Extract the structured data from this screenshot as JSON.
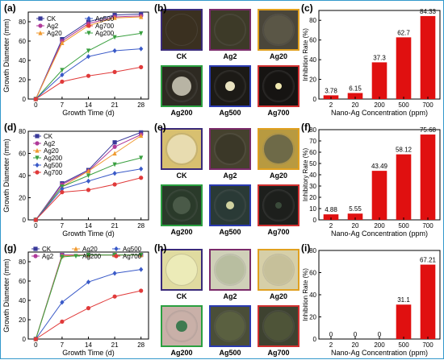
{
  "panels": {
    "a": {
      "tag": "(a)"
    },
    "b": {
      "tag": "(b)"
    },
    "c": {
      "tag": "(c)"
    },
    "d": {
      "tag": "(d)"
    },
    "e": {
      "tag": "(e)"
    },
    "f": {
      "tag": "(f)"
    },
    "g": {
      "tag": "(g)"
    },
    "h": {
      "tag": "(h)"
    },
    "i": {
      "tag": "(i)"
    }
  },
  "dish_sets": [
    {
      "labels": [
        "CK",
        "Ag2",
        "Ag20",
        "Ag200",
        "Ag500",
        "Ag700"
      ],
      "frame_colors": [
        "#3a2a7a",
        "#7a2a6a",
        "#e0a020",
        "#2aa040",
        "#2a3ab0",
        "#d03030"
      ],
      "plate_colors": [
        "#3a3020",
        "#3d3a28",
        "#4a463a",
        "#2e2a22",
        "#1c1a16",
        "#161412"
      ],
      "colony_colors": [
        "#3a3020",
        "#3d3a28",
        "#5a5646",
        "#b8b4a4",
        "#e8e2c0",
        "#f0e8b0"
      ],
      "colony_size": [
        0.95,
        0.9,
        0.88,
        0.6,
        0.3,
        0.2
      ]
    },
    {
      "labels": [
        "CK",
        "Ag2",
        "Ag20",
        "Ag200",
        "Ag500",
        "Ag700"
      ],
      "frame_colors": [
        "#3a2a7a",
        "#7a2a6a",
        "#e0a020",
        "#2aa040",
        "#2a3ab0",
        "#d03030"
      ],
      "plate_colors": [
        "#d8c070",
        "#45412e",
        "#b89a40",
        "#2a3a2a",
        "#2a3a36",
        "#1d1f1c"
      ],
      "colony_colors": [
        "#e8dcb0",
        "#3b3828",
        "#6e6a48",
        "#4a5a48",
        "#d0d2a0",
        "#3a4a3a"
      ],
      "colony_size": [
        0.92,
        0.9,
        0.88,
        0.55,
        0.25,
        0.2
      ]
    },
    {
      "labels": [
        "CK",
        "Ag2",
        "Ag20",
        "Ag200",
        "Ag500",
        "Ag700"
      ],
      "frame_colors": [
        "#3a2a7a",
        "#7a2a6a",
        "#e0a020",
        "#2aa040",
        "#2a3ab0",
        "#d03030"
      ],
      "plate_colors": [
        "#e0dba0",
        "#cfd0b8",
        "#d6cfa8",
        "#c9b0a8",
        "#4a4e38",
        "#3e4230"
      ],
      "colony_colors": [
        "#ecebb8",
        "#b8bea0",
        "#c6c09a",
        "#3e7a50",
        "#5a6040",
        "#4e5438"
      ],
      "colony_size": [
        0.95,
        0.92,
        0.92,
        0.35,
        0.9,
        0.9
      ]
    }
  ],
  "chart_data": [
    {
      "panel": "a",
      "type": "line",
      "xlabel": "Growth Time (d)",
      "ylabel": "Growth Diameter (mm)",
      "x": [
        0,
        7,
        14,
        21,
        28
      ],
      "xlim": [
        -2,
        30
      ],
      "ylim": [
        0,
        90
      ],
      "xticks": [
        "0",
        "7",
        "14",
        "21",
        "28"
      ],
      "yticks": [
        "0",
        "20",
        "40",
        "60",
        "80"
      ],
      "legend": {
        "placement": "top-inside",
        "columns": 2
      },
      "series": [
        {
          "name": "CK",
          "color": "#3a3a9a",
          "marker": "square",
          "values": [
            0,
            62,
            80,
            87,
            88
          ]
        },
        {
          "name": "Ag2",
          "color": "#b03a9a",
          "marker": "circle",
          "values": [
            0,
            60,
            78,
            85,
            86
          ]
        },
        {
          "name": "Ag20",
          "color": "#f09a30",
          "marker": "triangle",
          "values": [
            0,
            58,
            76,
            84,
            85
          ]
        },
        {
          "name": "Ag200",
          "color": "#3aa040",
          "marker": "triangle-down",
          "values": [
            0,
            30,
            50,
            64,
            68
          ]
        },
        {
          "name": "Ag500",
          "color": "#3a5ac8",
          "marker": "diamond",
          "values": [
            0,
            25,
            44,
            50,
            52
          ]
        },
        {
          "name": "Ag700",
          "color": "#e03a3a",
          "marker": "circle",
          "values": [
            0,
            18,
            24,
            28,
            33
          ]
        }
      ]
    },
    {
      "panel": "c",
      "type": "bar",
      "xlabel": "Nano-Ag Concentration (ppm)",
      "ylabel": "Inhibition Rate (%)",
      "categories": [
        "2",
        "20",
        "200",
        "500",
        "700"
      ],
      "values": [
        3.78,
        6.15,
        37.3,
        62.7,
        84.33
      ],
      "data_labels": [
        "3.78",
        "6.15",
        "37.3",
        "62.7",
        "84.33"
      ],
      "ylim": [
        0,
        90
      ],
      "yticks": [
        "0",
        "20",
        "40",
        "60",
        "80"
      ],
      "bar_color": "#e01010"
    },
    {
      "panel": "d",
      "type": "line",
      "xlabel": "Growth Time (d)",
      "ylabel": "Growth Diameter (mm)",
      "x": [
        0,
        7,
        14,
        21,
        28
      ],
      "xlim": [
        -2,
        30
      ],
      "ylim": [
        0,
        80
      ],
      "xticks": [
        "0",
        "7",
        "14",
        "21",
        "28"
      ],
      "yticks": [
        "0",
        "20",
        "40",
        "60",
        "80"
      ],
      "legend": {
        "placement": "top-left",
        "columns": 1
      },
      "series": [
        {
          "name": "CK",
          "color": "#3a3a9a",
          "marker": "square",
          "values": [
            0,
            33,
            45,
            70,
            79
          ]
        },
        {
          "name": "Ag2",
          "color": "#b03a9a",
          "marker": "circle",
          "values": [
            0,
            32,
            44,
            66,
            77
          ]
        },
        {
          "name": "Ag20",
          "color": "#f09a30",
          "marker": "triangle",
          "values": [
            0,
            30,
            44,
            60,
            76
          ]
        },
        {
          "name": "Ag200",
          "color": "#3aa040",
          "marker": "triangle-down",
          "values": [
            0,
            30,
            40,
            50,
            56
          ]
        },
        {
          "name": "Ag500",
          "color": "#3a5ac8",
          "marker": "diamond",
          "values": [
            0,
            28,
            35,
            42,
            46
          ]
        },
        {
          "name": "Ag700",
          "color": "#e03a3a",
          "marker": "circle",
          "values": [
            0,
            25,
            27,
            32,
            38
          ]
        }
      ]
    },
    {
      "panel": "f",
      "type": "bar",
      "xlabel": "Nano-Ag Concentration (ppm)",
      "ylabel": "Inhibitory Rate (%)",
      "categories": [
        "2",
        "20",
        "200",
        "500",
        "700"
      ],
      "values": [
        4.88,
        5.55,
        43.49,
        58.12,
        75.68
      ],
      "data_labels": [
        "4.88",
        "5.55",
        "43.49",
        "58.12",
        "75.68"
      ],
      "ylim": [
        0,
        80
      ],
      "yticks": [
        "0",
        "10",
        "20",
        "30",
        "40",
        "50",
        "60",
        "70",
        "80"
      ],
      "bar_color": "#e01010"
    },
    {
      "panel": "g",
      "type": "line",
      "xlabel": "Growth Time (d)",
      "ylabel": "Growth Diameter (mm)",
      "x": [
        0,
        7,
        14,
        21,
        28
      ],
      "xlim": [
        -2,
        30
      ],
      "ylim": [
        0,
        90
      ],
      "xticks": [
        "0",
        "7",
        "14",
        "21",
        "28"
      ],
      "yticks": [
        "0",
        "20",
        "40",
        "60",
        "80"
      ],
      "legend": {
        "placement": "top",
        "columns": 3
      },
      "series": [
        {
          "name": "CK",
          "color": "#3a3a9a",
          "marker": "square",
          "values": [
            0,
            87,
            87,
            87,
            87
          ]
        },
        {
          "name": "Ag2",
          "color": "#b03a9a",
          "marker": "circle",
          "values": [
            0,
            87,
            87,
            87,
            87
          ]
        },
        {
          "name": "Ag20",
          "color": "#f09a30",
          "marker": "triangle",
          "values": [
            0,
            86,
            87,
            87,
            87
          ]
        },
        {
          "name": "Ag200",
          "color": "#3aa040",
          "marker": "triangle-down",
          "values": [
            0,
            85,
            87,
            87,
            87
          ]
        },
        {
          "name": "Ag500",
          "color": "#3a5ac8",
          "marker": "diamond",
          "values": [
            0,
            38,
            59,
            68,
            72
          ]
        },
        {
          "name": "Ag700",
          "color": "#e03a3a",
          "marker": "circle",
          "values": [
            0,
            18,
            32,
            44,
            50
          ]
        }
      ]
    },
    {
      "panel": "i",
      "type": "bar",
      "xlabel": "Nano-Ag Concentration (ppm)",
      "ylabel": "Inhibition Rate (%)",
      "categories": [
        "2",
        "20",
        "200",
        "500",
        "700"
      ],
      "values": [
        0,
        0,
        0,
        31.1,
        67.21
      ],
      "data_labels": [
        "0",
        "0",
        "0",
        "31.1",
        "67.21"
      ],
      "ylim": [
        0,
        80
      ],
      "yticks": [
        "0",
        "20",
        "40",
        "60",
        "80"
      ],
      "bar_color": "#e01010"
    }
  ]
}
